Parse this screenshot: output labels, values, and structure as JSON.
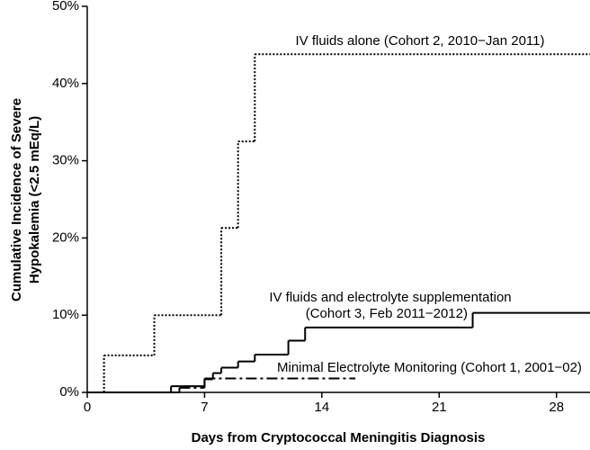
{
  "chart_data": {
    "type": "step",
    "xlabel": "Days from Cryptococcal Meningitis Diagnosis",
    "ylabel": [
      "Cumulative Incidence of Severe",
      "Hypokalemia (<2.5 mEq/L)"
    ],
    "xlim": [
      0,
      30
    ],
    "xticks": [
      0,
      7,
      14,
      21,
      28
    ],
    "ylim": [
      0,
      50
    ],
    "yticks": [
      {
        "value": 0,
        "label": "0%"
      },
      {
        "value": 10,
        "label": "10%"
      },
      {
        "value": 20,
        "label": "20%"
      },
      {
        "value": 30,
        "label": "30%"
      },
      {
        "value": 40,
        "label": "40%"
      },
      {
        "value": 50,
        "label": "50%"
      }
    ],
    "series": [
      {
        "color": "#000000",
        "dash": "dotted",
        "x": [
          0,
          1,
          4,
          8,
          9,
          10,
          30
        ],
        "values": [
          0,
          4.8,
          10,
          21.3,
          32.5,
          43.8,
          43.8
        ]
      },
      {
        "color": "#000000",
        "dash": "solid",
        "x": [
          0,
          5,
          7,
          7.5,
          8,
          9,
          10,
          12,
          13,
          23,
          30
        ],
        "values": [
          0,
          0.8,
          1.7,
          2.5,
          3.2,
          4.0,
          4.9,
          6.7,
          8.4,
          10.3,
          10.3
        ]
      },
      {
        "color": "#000000",
        "dash": "dashdot",
        "x": [
          0,
          5.5,
          7,
          16
        ],
        "values": [
          0,
          0.6,
          1.8,
          1.8
        ]
      }
    ],
    "annotations": [
      "IV fluids alone (Cohort 2, 2010−Jan 2011)",
      "IV fluids and electrolyte supplementation",
      "(Cohort 3, Feb 2011−2012)",
      "Minimal Electrolyte Monitoring (Cohort 1, 2001−02)"
    ]
  }
}
